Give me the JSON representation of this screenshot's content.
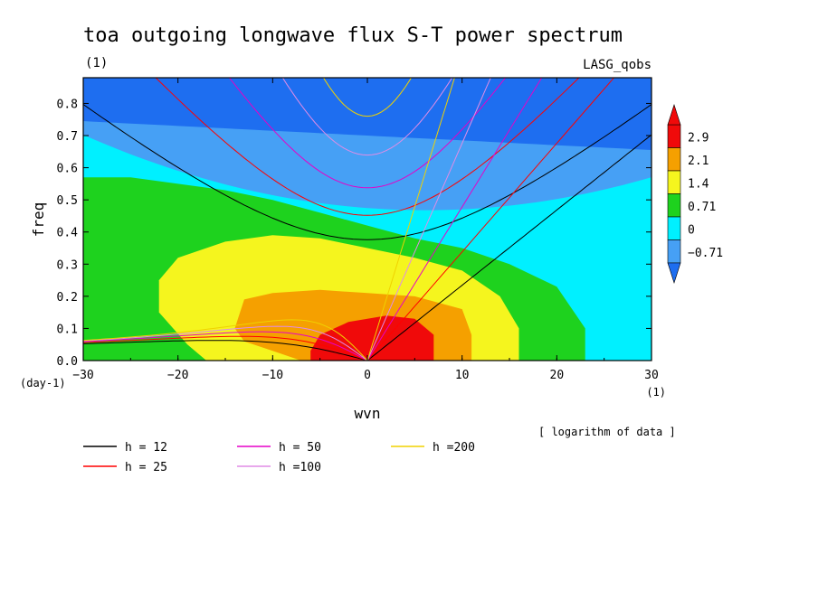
{
  "chart_data": {
    "type": "heatmap",
    "title": "toa outgoing longwave flux S-T power spectrum",
    "units_top": "(1)",
    "source": "LASG_qobs",
    "xlabel": "wvn",
    "xlabel_unit": "(1)",
    "ylabel": "freq",
    "ylabel_unit": "(day-1)",
    "xlim": [
      -30,
      30
    ],
    "ylim": [
      0,
      0.88
    ],
    "xticks": [
      -30,
      -20,
      -10,
      0,
      10,
      20,
      30
    ],
    "yticks": [
      0.0,
      0.1,
      0.2,
      0.3,
      0.4,
      0.5,
      0.6,
      0.7,
      0.8
    ],
    "ytick_labels": [
      "0.0",
      "0.1",
      "0.2",
      "0.3",
      "0.4",
      "0.5",
      "0.6",
      "0.7",
      "0.8"
    ],
    "colorbar_note": "[ logarithm of data ]",
    "contour_levels": [
      -0.71,
      0,
      0.71,
      1.4,
      2.1,
      2.9
    ],
    "colorbar_labels": [
      "2.9",
      "2.1",
      "1.4",
      "0.71",
      "0",
      "-0.71"
    ],
    "fill_colors": [
      "#1e6ef0",
      "#46a0f5",
      "#00f0ff",
      "#1ed21e",
      "#f5f51e",
      "#f5a000",
      "#f00a0a"
    ],
    "contour_regions": [
      {
        "level": 0.71,
        "points": [
          [
            -30,
            0.57
          ],
          [
            -25,
            0.57
          ],
          [
            -20,
            0.55
          ],
          [
            -15,
            0.53
          ],
          [
            -10,
            0.5
          ],
          [
            -5,
            0.46
          ],
          [
            0,
            0.42
          ],
          [
            5,
            0.38
          ],
          [
            10,
            0.35
          ],
          [
            15,
            0.3
          ],
          [
            20,
            0.23
          ],
          [
            23,
            0.1
          ],
          [
            23,
            0
          ],
          [
            -30,
            0
          ]
        ]
      },
      {
        "level": 1.4,
        "points": [
          [
            -22,
            0.25
          ],
          [
            -20,
            0.32
          ],
          [
            -15,
            0.37
          ],
          [
            -10,
            0.39
          ],
          [
            -5,
            0.38
          ],
          [
            0,
            0.35
          ],
          [
            5,
            0.32
          ],
          [
            10,
            0.28
          ],
          [
            14,
            0.2
          ],
          [
            16,
            0.1
          ],
          [
            16,
            0
          ],
          [
            -17,
            0
          ],
          [
            -19,
            0.05
          ],
          [
            -22,
            0.15
          ]
        ]
      },
      {
        "level": 2.1,
        "points": [
          [
            -14,
            0.1
          ],
          [
            -13,
            0.19
          ],
          [
            -10,
            0.21
          ],
          [
            -5,
            0.22
          ],
          [
            0,
            0.21
          ],
          [
            5,
            0.2
          ],
          [
            10,
            0.16
          ],
          [
            11,
            0.08
          ],
          [
            11,
            0
          ],
          [
            -7,
            0
          ],
          [
            -10,
            0.03
          ],
          [
            -13,
            0.06
          ]
        ]
      },
      {
        "level": 2.9,
        "points": [
          [
            -6,
            0.03
          ],
          [
            -5,
            0.08
          ],
          [
            -2,
            0.12
          ],
          [
            2,
            0.14
          ],
          [
            5,
            0.13
          ],
          [
            7,
            0.08
          ],
          [
            7,
            0
          ],
          [
            -6,
            0
          ]
        ]
      }
    ],
    "dispersion_curves": [
      {
        "name": "h = 12",
        "color": "#000000"
      },
      {
        "name": "h = 25",
        "color": "#ff0000"
      },
      {
        "name": "h = 50",
        "color": "#e600c8"
      },
      {
        "name": "h =100",
        "color": "#e08ce6"
      },
      {
        "name": "h =200",
        "color": "#f0d200"
      }
    ]
  }
}
